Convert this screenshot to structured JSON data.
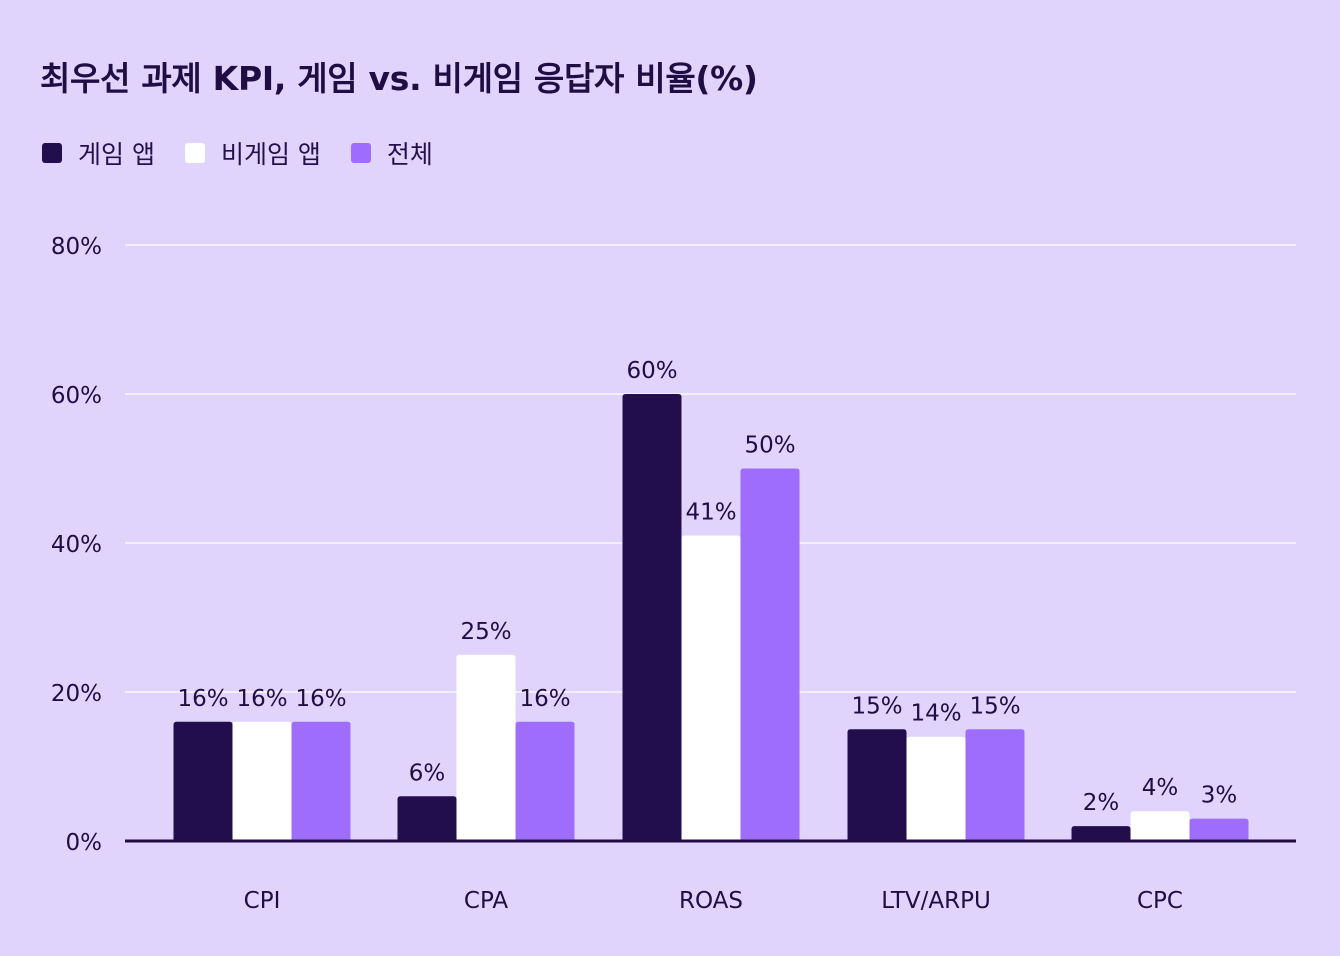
{
  "chart_data": {
    "type": "bar",
    "title": "최우선 과제 KPI, 게임 vs. 비게임 응답자 비율(%)",
    "categories": [
      "CPI",
      "CPA",
      "ROAS",
      "LTV/ARPU",
      "CPC"
    ],
    "series": [
      {
        "name": "게임 앱",
        "color": "#220e4c",
        "values": [
          16,
          6,
          60,
          15,
          2
        ]
      },
      {
        "name": "비게임 앱",
        "color": "#ffffff",
        "values": [
          16,
          25,
          41,
          14,
          4
        ]
      },
      {
        "name": "전체",
        "color": "#9f6dfe",
        "values": [
          16,
          16,
          50,
          15,
          3
        ]
      }
    ],
    "y_ticks": [
      "0%",
      "20%",
      "40%",
      "60%",
      "80%"
    ],
    "ylim": [
      0,
      80
    ],
    "grid": true,
    "legend_position": "top-left",
    "value_suffix": "%",
    "colors": {
      "background": "#e0d4fd",
      "gridline": "#ffffff",
      "axis": "#1f0d44",
      "text": "#1f0d44"
    }
  }
}
